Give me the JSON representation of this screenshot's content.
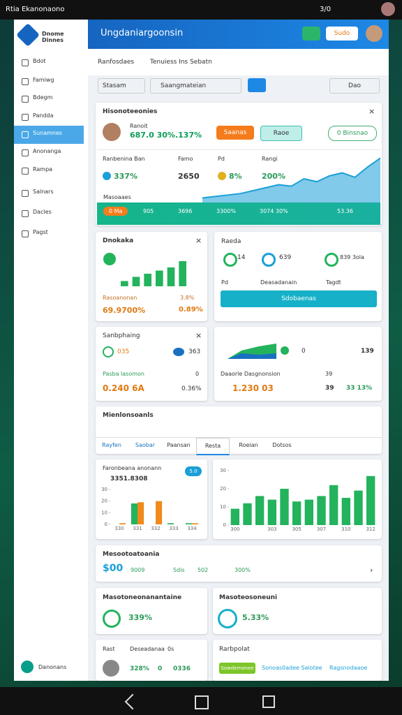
{
  "status_bar": {
    "left": "Rtia Ekanonaono",
    "right": "3/0"
  },
  "sidebar": {
    "logo": "Dnome Dinnes",
    "items": [
      "Bdot",
      "Famiwg",
      "Bdegm",
      "Pandda",
      "Sunamnes",
      "Anonanga",
      "Rampa",
      "Salnars",
      "Dacles",
      "Pagst"
    ],
    "footer": "Danonans"
  },
  "header": {
    "title": "Ungdaniargoonsin",
    "button": "Sudo"
  },
  "tabs": [
    "Ranfosdaes",
    "Tenuiess Ins Sebatn"
  ],
  "filters": {
    "select": "Stasam",
    "search": "Saangmateian",
    "page": "Dao"
  },
  "overview": {
    "title": "Hisonoteeonies",
    "name": "Ranoit",
    "stat": "687.0 30%.137%",
    "buttons": [
      "Saanas",
      "Raoe",
      "0 Binsnao"
    ],
    "metrics": [
      {
        "label": "Ranbenina Ban",
        "value": "337%"
      },
      {
        "label": "Famo",
        "value": "2650"
      },
      {
        "label": "Pd",
        "value": "8%"
      },
      {
        "label": "Rangi",
        "value": "200%"
      }
    ],
    "strip_label": "Masoaaes",
    "footer": [
      "0 Ma",
      "905",
      "3696",
      "3300%",
      "3074 30%",
      "53.36"
    ],
    "chart": {
      "type": "area",
      "values": [
        8,
        10,
        12,
        14,
        18,
        22,
        26,
        24,
        34,
        30,
        38,
        42,
        36,
        50,
        62
      ],
      "ylim": [
        0,
        70
      ],
      "color": "#1a9fd8"
    }
  },
  "card_a": {
    "title": "Dnokaka",
    "label": "Rasoanonan",
    "label_value": "3.8%",
    "value": "69.9700%",
    "change": "0.89%",
    "chart": {
      "type": "bar",
      "values": [
        5,
        9,
        12,
        15,
        18,
        24
      ],
      "ylim": [
        0,
        30
      ],
      "color": "#23b35c"
    }
  },
  "card_b": {
    "title": "Raeda",
    "items": [
      "14",
      "639",
      "839 3ola"
    ],
    "columns": [
      "Pd",
      "Deasadanain",
      "Tagdt"
    ],
    "button": "Sdobaenas"
  },
  "card_c": {
    "title": "Sanbphaing",
    "items": [
      "035",
      "363"
    ],
    "label": "Pasba lasomon",
    "label_value": "0",
    "value": "0.240 6A",
    "change": "0.36%"
  },
  "card_d": {
    "label": "Daaorle Dasgnonsion",
    "label_value": "39",
    "value": "1.230 03",
    "count": "39",
    "change": "33 13%",
    "items": [
      "0",
      "139"
    ]
  },
  "section": {
    "title": "Mienlonsoanls",
    "tabs": [
      "Rayfen",
      "Saobar",
      "Paansan",
      "Resta",
      "Roeian",
      "Dotsos"
    ]
  },
  "chart_left": {
    "type": "bar",
    "title": "Faronbeana anonann",
    "subtitle": "3351.8308",
    "badge": "5.0",
    "categories": [
      "330",
      "331",
      "332",
      "333",
      "334"
    ],
    "ylim": [
      0,
      30
    ],
    "yticks": [
      0,
      10,
      20,
      30
    ],
    "series": [
      {
        "color": "#23b35c",
        "values": [
          0,
          18,
          0,
          1,
          1
        ]
      },
      {
        "color": "#f08a1c",
        "values": [
          1,
          19,
          20,
          0,
          1
        ]
      }
    ]
  },
  "chart_right": {
    "type": "bar",
    "categories": [
      "300",
      null,
      null,
      "303",
      null,
      "305",
      null,
      "307",
      null,
      "310",
      null,
      "312"
    ],
    "ylim": [
      0,
      30
    ],
    "yticks": [
      0,
      10,
      20,
      30
    ],
    "color": "#23b35c",
    "values": [
      9,
      12,
      16,
      14,
      20,
      13,
      14,
      16,
      22,
      15,
      19,
      27
    ]
  },
  "summary": {
    "title": "Mesootoatoania",
    "value": "$00",
    "items": [
      "9009",
      "Sdis",
      "502",
      "300%"
    ]
  },
  "card_e": {
    "title": "Masotoneonanantaine",
    "value": "339%"
  },
  "card_f": {
    "title": "Masoteosoneuni",
    "value": "5.33%"
  },
  "card_g": {
    "columns": [
      "Rast",
      "Deseadanaa",
      "0s"
    ],
    "values": [
      "328%",
      "0",
      "0336"
    ]
  },
  "card_h": {
    "title": "Rarbpolat",
    "button": "Sowdemonee",
    "links": [
      "Sonoas0adee Salotee",
      "Ragsnodaaoe"
    ]
  }
}
